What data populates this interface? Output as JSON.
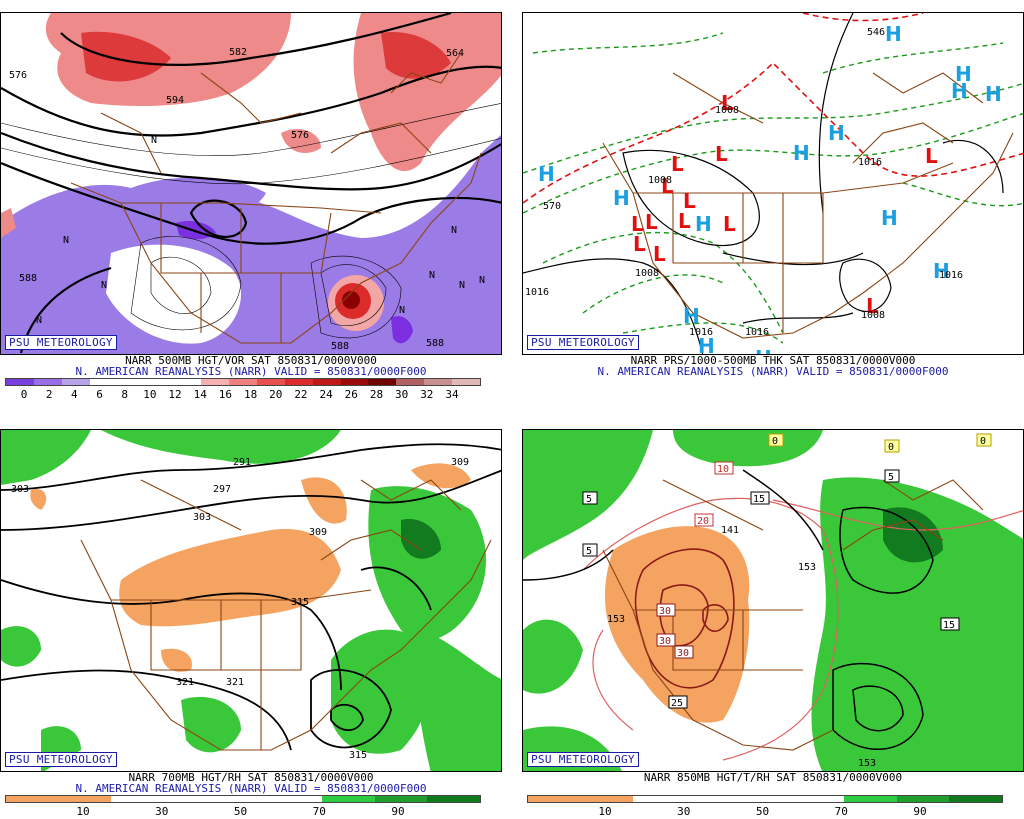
{
  "panels": [
    {
      "brand": "PSU METEOROLOGY",
      "line1": "NARR 500MB HGT/VOR SAT 850831/0000V000",
      "line2": "N. AMERICAN REANALYSIS (NARR) VALID = 850831/0000F000",
      "legend_ticks": [
        "0",
        "2",
        "4",
        "6",
        "8",
        "10",
        "12",
        "14",
        "16",
        "18",
        "20",
        "22",
        "24",
        "26",
        "28",
        "30",
        "32",
        "34"
      ],
      "legend_colors": [
        "#7b3fe0",
        "#9a6ee6",
        "#b8a3ea",
        "#ffffff",
        "#ffffff",
        "#ffffff",
        "#ffffff",
        "#f7b0b0",
        "#f08080",
        "#e85050",
        "#dc2b2b",
        "#c01818",
        "#9a0a0a",
        "#700000",
        "#b06060",
        "#c89090",
        "#e0b8b8"
      ],
      "contour_labels": [
        "576",
        "582",
        "594",
        "564",
        "576",
        "588",
        "588",
        "588"
      ]
    },
    {
      "brand": "PSU METEOROLOGY",
      "line1": "NARR PRS/1000-500MB THK SAT 850831/0000V000",
      "line2": "N. AMERICAN REANALYSIS (NARR) VALID = 850831/0000F000",
      "high_symbol": "H",
      "low_symbol": "L",
      "contour_labels": [
        "1016",
        "1008",
        "1008",
        "1016",
        "1016",
        "1016",
        "1008",
        "570",
        "1008",
        "1016",
        "546"
      ]
    },
    {
      "brand": "PSU METEOROLOGY",
      "line1": "NARR 700MB HGT/RH SAT 850831/0000V000",
      "line2": "N. AMERICAN REANALYSIS (NARR) VALID = 850831/0000F000",
      "legend_ticks": [
        "10",
        "30",
        "50",
        "70",
        "90"
      ],
      "legend_colors": [
        "#f4a460",
        "#f4a460",
        "#ffffff",
        "#ffffff",
        "#ffffff",
        "#ffffff",
        "#2ecc40",
        "#1f9e2e",
        "#117a1f"
      ],
      "contour_labels": [
        "291",
        "297",
        "303",
        "309",
        "315",
        "321",
        "321",
        "315",
        "303",
        "309"
      ]
    },
    {
      "brand": "PSU METEOROLOGY",
      "line1": "NARR 850MB HGT/T/RH SAT 850831/0000V000",
      "line2": "",
      "legend_ticks": [
        "10",
        "30",
        "50",
        "70",
        "90"
      ],
      "legend_colors": [
        "#f4a460",
        "#f4a460",
        "#ffffff",
        "#ffffff",
        "#ffffff",
        "#ffffff",
        "#2ecc40",
        "#1f9e2e",
        "#117a1f"
      ],
      "contour_labels": [
        "141",
        "153",
        "153",
        "153"
      ],
      "temp_boxes": [
        "5",
        "5",
        "15",
        "10",
        "20",
        "30",
        "30",
        "30",
        "25",
        "15",
        "5",
        "0",
        "0",
        "0"
      ]
    }
  ]
}
